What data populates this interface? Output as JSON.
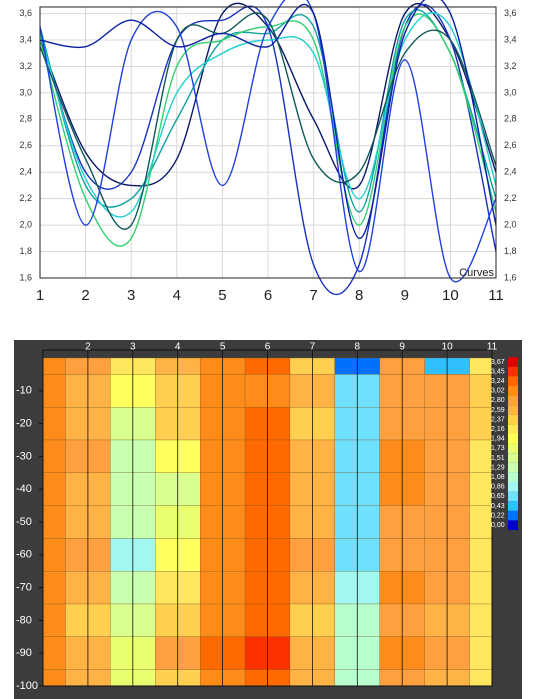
{
  "chart_data": [
    {
      "type": "line",
      "annotation": "Curves",
      "x": [
        1,
        2,
        3,
        4,
        5,
        6,
        7,
        8,
        9,
        10,
        11
      ],
      "xlim": [
        1,
        11
      ],
      "xticks": [
        1,
        2,
        3,
        4,
        5,
        6,
        7,
        8,
        9,
        10,
        11
      ],
      "ylim": [
        1.6,
        3.65
      ],
      "yticks": [
        {
          "value": 1.6,
          "label": "1,6"
        },
        {
          "value": 1.8,
          "label": "1,8"
        },
        {
          "value": 2.0,
          "label": "2,0"
        },
        {
          "value": 2.2,
          "label": "2,2"
        },
        {
          "value": 2.4,
          "label": "2,4"
        },
        {
          "value": 2.6,
          "label": "2,6"
        },
        {
          "value": 2.8,
          "label": "2,8"
        },
        {
          "value": 3.0,
          "label": "3,0"
        },
        {
          "value": 3.2,
          "label": "3,2"
        },
        {
          "value": 3.4,
          "label": "3,4"
        },
        {
          "value": 3.6,
          "label": "3,6"
        }
      ],
      "grid": true,
      "series": [
        {
          "color": "#0a1a6a",
          "values": [
            3.4,
            2.55,
            2.3,
            2.5,
            3.6,
            3.5,
            2.8,
            2.3,
            3.6,
            3.4,
            2.4
          ]
        },
        {
          "color": "#1830c0",
          "values": [
            3.45,
            2.4,
            2.4,
            3.4,
            3.55,
            3.5,
            1.7,
            1.7,
            3.5,
            3.4,
            1.8
          ]
        },
        {
          "color": "#10a0a0",
          "values": [
            3.5,
            2.3,
            2.2,
            2.8,
            3.4,
            3.45,
            3.5,
            2.1,
            3.55,
            3.3,
            2.2
          ]
        },
        {
          "color": "#30d070",
          "values": [
            3.4,
            2.2,
            1.9,
            3.2,
            3.4,
            3.5,
            3.4,
            2.0,
            3.5,
            3.3,
            2.1
          ]
        },
        {
          "color": "#20d0d0",
          "values": [
            3.45,
            2.35,
            2.1,
            3.0,
            3.3,
            3.4,
            3.3,
            2.2,
            3.4,
            3.5,
            2.3
          ]
        },
        {
          "color": "#105858",
          "values": [
            3.35,
            2.5,
            2.0,
            3.4,
            3.45,
            3.55,
            2.5,
            2.4,
            3.3,
            3.4,
            2.45
          ]
        },
        {
          "color": "#2040e0",
          "values": [
            3.5,
            2.0,
            3.4,
            3.5,
            2.3,
            3.5,
            3.6,
            1.65,
            3.25,
            1.6,
            2.2
          ]
        },
        {
          "color": "#0820a0",
          "values": [
            3.4,
            3.35,
            3.55,
            3.35,
            3.45,
            3.35,
            3.6,
            1.9,
            3.45,
            3.6,
            2.0
          ]
        }
      ]
    },
    {
      "type": "heatmap",
      "x": [
        1,
        2,
        3,
        4,
        5,
        6,
        7,
        8,
        9,
        10,
        11
      ],
      "y": [
        0,
        -10,
        -20,
        -30,
        -40,
        -50,
        -60,
        -70,
        -80,
        -90,
        -100
      ],
      "xlim": [
        1,
        11
      ],
      "xticks": [
        2,
        3,
        4,
        5,
        6,
        7,
        8,
        9,
        10,
        11
      ],
      "ylim": [
        0,
        -100
      ],
      "yticks": [
        -10,
        -20,
        -30,
        -40,
        -50,
        -60,
        -70,
        -80,
        -90,
        -100
      ],
      "z": [
        [
          3.0,
          2.6,
          2.0,
          2.4,
          3.0,
          3.1,
          2.2,
          0.2,
          2.6,
          0.3,
          2.0
        ],
        [
          3.0,
          2.4,
          1.9,
          2.2,
          3.0,
          3.0,
          2.4,
          0.6,
          2.8,
          2.6,
          2.2
        ],
        [
          3.0,
          2.4,
          1.3,
          2.3,
          3.0,
          3.1,
          2.2,
          0.5,
          2.8,
          2.7,
          2.2
        ],
        [
          3.0,
          2.6,
          1.2,
          1.9,
          3.0,
          3.1,
          2.4,
          0.6,
          2.9,
          2.6,
          2.1
        ],
        [
          3.0,
          2.5,
          1.2,
          1.5,
          3.0,
          3.1,
          2.5,
          0.6,
          2.9,
          2.6,
          2.1
        ],
        [
          3.0,
          2.4,
          1.1,
          1.7,
          3.0,
          3.1,
          2.5,
          0.5,
          2.8,
          2.6,
          2.0
        ],
        [
          3.0,
          2.6,
          0.8,
          1.9,
          3.0,
          3.1,
          2.6,
          0.6,
          2.8,
          2.6,
          2.1
        ],
        [
          3.0,
          2.4,
          1.2,
          2.0,
          3.0,
          3.1,
          2.4,
          0.8,
          2.9,
          2.6,
          2.0
        ],
        [
          2.9,
          2.3,
          1.5,
          2.2,
          3.0,
          3.2,
          2.3,
          0.9,
          2.8,
          2.5,
          2.0
        ],
        [
          3.0,
          2.4,
          1.7,
          2.6,
          3.1,
          3.3,
          2.5,
          1.0,
          2.9,
          2.6,
          2.1
        ],
        [
          3.0,
          2.5,
          1.6,
          2.3,
          3.0,
          3.1,
          2.4,
          1.0,
          2.8,
          2.5,
          2.0
        ]
      ],
      "legend_levels": [
        {
          "value": 3.67,
          "label": "3,67"
        },
        {
          "value": 3.45,
          "label": "3,45"
        },
        {
          "value": 3.24,
          "label": "3,24"
        },
        {
          "value": 3.02,
          "label": "3,02"
        },
        {
          "value": 2.8,
          "label": "2,80"
        },
        {
          "value": 2.59,
          "label": "2,59"
        },
        {
          "value": 2.37,
          "label": "2,37"
        },
        {
          "value": 2.16,
          "label": "2,16"
        },
        {
          "value": 1.94,
          "label": "1,94"
        },
        {
          "value": 1.73,
          "label": "1,73"
        },
        {
          "value": 1.51,
          "label": "1,51"
        },
        {
          "value": 1.29,
          "label": "1,29"
        },
        {
          "value": 1.08,
          "label": "1,08"
        },
        {
          "value": 0.86,
          "label": "0,86"
        },
        {
          "value": 0.65,
          "label": "0,65"
        },
        {
          "value": 0.43,
          "label": "0,43"
        },
        {
          "value": 0.22,
          "label": "0,22"
        },
        {
          "value": 0.0,
          "label": "0,00"
        }
      ],
      "legend_colors": [
        "#e00000",
        "#ff3000",
        "#ff6a00",
        "#ff8c1a",
        "#ffa040",
        "#ffb347",
        "#ffd050",
        "#ffe860",
        "#ffff60",
        "#eaff70",
        "#d8ff90",
        "#c8ffb0",
        "#b8ffd0",
        "#a0f8f0",
        "#70e0ff",
        "#30c0ff",
        "#0070ff",
        "#0000d0"
      ]
    }
  ]
}
